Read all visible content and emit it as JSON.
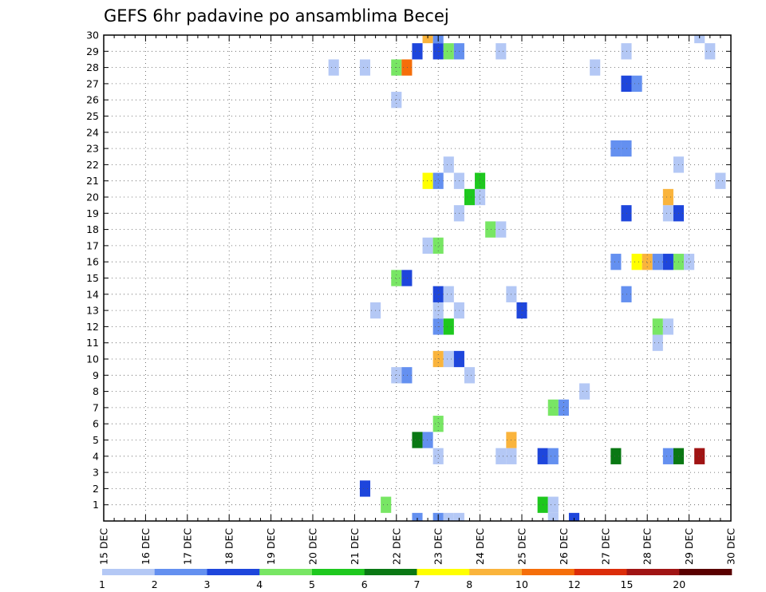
{
  "chart_data": {
    "type": "heatmap",
    "title": "GEFS 6hr padavine po ansamblima Becej",
    "x_tick_labels": [
      "15 DEC",
      "16 DEC",
      "17 DEC",
      "18 DEC",
      "19 DEC",
      "20 DEC",
      "21 DEC",
      "22 DEC",
      "23 DEC",
      "24 DEC",
      "25 DEC",
      "26 DEC",
      "27 DEC",
      "28 DEC",
      "29 DEC",
      "30 DEC"
    ],
    "y_tick_labels": [
      "1",
      "2",
      "3",
      "4",
      "5",
      "6",
      "7",
      "8",
      "9",
      "10",
      "11",
      "12",
      "13",
      "14",
      "15",
      "16",
      "17",
      "18",
      "19",
      "20",
      "21",
      "22",
      "23",
      "24",
      "25",
      "26",
      "27",
      "28",
      "29",
      "30"
    ],
    "x_range_days": [
      15,
      30
    ],
    "y_range": [
      0,
      30
    ],
    "grid": true,
    "colorbar": {
      "boundaries": [
        "1",
        "2",
        "3",
        "4",
        "5",
        "6",
        "7",
        "8",
        "10",
        "12",
        "15",
        "20"
      ],
      "colors": [
        "#b4c8f5",
        "#6490f0",
        "#1e46dc",
        "#78e664",
        "#1ec81e",
        "#0a7814",
        "#ffff00",
        "#fab43c",
        "#f56e0a",
        "#dc2d0a",
        "#a01414",
        "#5a0000"
      ]
    },
    "cells": [
      {
        "x": 23.0,
        "y": 0.0,
        "v": 2.0
      },
      {
        "x": 22.5,
        "y": 0.0,
        "v": 2.5
      },
      {
        "x": 23.25,
        "y": 0.0,
        "v": 1.0
      },
      {
        "x": 23.5,
        "y": 0.0,
        "v": 1.0
      },
      {
        "x": 25.75,
        "y": 0.0,
        "v": 1.0
      },
      {
        "x": 26.25,
        "y": 0.0,
        "v": 3.0
      },
      {
        "x": 21.75,
        "y": 1.0,
        "v": 4.5
      },
      {
        "x": 25.5,
        "y": 1.0,
        "v": 5.5
      },
      {
        "x": 25.75,
        "y": 1.0,
        "v": 1.0
      },
      {
        "x": 21.25,
        "y": 2.0,
        "v": 3.0
      },
      {
        "x": 23.0,
        "y": 4.0,
        "v": 1.0
      },
      {
        "x": 24.5,
        "y": 4.0,
        "v": 1.0
      },
      {
        "x": 24.75,
        "y": 4.0,
        "v": 1.0
      },
      {
        "x": 25.5,
        "y": 4.0,
        "v": 3.0
      },
      {
        "x": 25.75,
        "y": 4.0,
        "v": 2.0
      },
      {
        "x": 27.25,
        "y": 4.0,
        "v": 6.5
      },
      {
        "x": 28.5,
        "y": 4.0,
        "v": 2.0
      },
      {
        "x": 28.75,
        "y": 4.0,
        "v": 6.5
      },
      {
        "x": 29.25,
        "y": 4.0,
        "v": 16.0
      },
      {
        "x": 22.5,
        "y": 5.0,
        "v": 6.5
      },
      {
        "x": 22.75,
        "y": 5.0,
        "v": 2.0
      },
      {
        "x": 24.75,
        "y": 5.0,
        "v": 8.5
      },
      {
        "x": 23.0,
        "y": 6.0,
        "v": 4.5
      },
      {
        "x": 25.75,
        "y": 7.0,
        "v": 4.5
      },
      {
        "x": 26.0,
        "y": 7.0,
        "v": 2.0
      },
      {
        "x": 26.5,
        "y": 8.0,
        "v": 1.0
      },
      {
        "x": 22.0,
        "y": 9.0,
        "v": 1.0
      },
      {
        "x": 22.25,
        "y": 9.0,
        "v": 2.0
      },
      {
        "x": 23.75,
        "y": 9.0,
        "v": 1.0
      },
      {
        "x": 23.0,
        "y": 10.0,
        "v": 8.5
      },
      {
        "x": 23.25,
        "y": 10.0,
        "v": 1.0
      },
      {
        "x": 23.5,
        "y": 10.0,
        "v": 3.0
      },
      {
        "x": 28.25,
        "y": 11.0,
        "v": 1.0
      },
      {
        "x": 23.0,
        "y": 12.0,
        "v": 2.0
      },
      {
        "x": 23.25,
        "y": 12.0,
        "v": 5.5
      },
      {
        "x": 28.25,
        "y": 12.0,
        "v": 4.5
      },
      {
        "x": 28.5,
        "y": 12.0,
        "v": 1.0
      },
      {
        "x": 21.5,
        "y": 13.0,
        "v": 1.0
      },
      {
        "x": 23.0,
        "y": 13.0,
        "v": 1.0
      },
      {
        "x": 23.5,
        "y": 13.0,
        "v": 1.0
      },
      {
        "x": 25.0,
        "y": 13.0,
        "v": 3.0
      },
      {
        "x": 23.0,
        "y": 14.0,
        "v": 3.0
      },
      {
        "x": 23.25,
        "y": 14.0,
        "v": 1.0
      },
      {
        "x": 24.75,
        "y": 14.0,
        "v": 1.0
      },
      {
        "x": 27.5,
        "y": 14.0,
        "v": 2.0
      },
      {
        "x": 22.0,
        "y": 15.0,
        "v": 4.5
      },
      {
        "x": 22.25,
        "y": 15.0,
        "v": 3.0
      },
      {
        "x": 27.25,
        "y": 16.0,
        "v": 2.0
      },
      {
        "x": 27.75,
        "y": 16.0,
        "v": 7.5
      },
      {
        "x": 28.0,
        "y": 16.0,
        "v": 8.5
      },
      {
        "x": 28.25,
        "y": 16.0,
        "v": 2.0
      },
      {
        "x": 28.5,
        "y": 16.0,
        "v": 3.0
      },
      {
        "x": 28.75,
        "y": 16.0,
        "v": 4.5
      },
      {
        "x": 29.0,
        "y": 16.0,
        "v": 1.0
      },
      {
        "x": 22.75,
        "y": 17.0,
        "v": 1.0
      },
      {
        "x": 23.0,
        "y": 17.0,
        "v": 4.5
      },
      {
        "x": 24.25,
        "y": 18.0,
        "v": 4.5
      },
      {
        "x": 24.5,
        "y": 18.0,
        "v": 1.0
      },
      {
        "x": 23.5,
        "y": 19.0,
        "v": 1.0
      },
      {
        "x": 27.5,
        "y": 19.0,
        "v": 3.0
      },
      {
        "x": 28.5,
        "y": 19.0,
        "v": 1.0
      },
      {
        "x": 28.75,
        "y": 19.0,
        "v": 3.0
      },
      {
        "x": 23.75,
        "y": 20.0,
        "v": 5.5
      },
      {
        "x": 24.0,
        "y": 20.0,
        "v": 1.0
      },
      {
        "x": 28.5,
        "y": 20.0,
        "v": 8.5
      },
      {
        "x": 22.75,
        "y": 21.0,
        "v": 7.5
      },
      {
        "x": 23.0,
        "y": 21.0,
        "v": 2.0
      },
      {
        "x": 23.5,
        "y": 21.0,
        "v": 1.0
      },
      {
        "x": 24.0,
        "y": 21.0,
        "v": 5.5
      },
      {
        "x": 29.75,
        "y": 21.0,
        "v": 1.0
      },
      {
        "x": 23.25,
        "y": 22.0,
        "v": 1.0
      },
      {
        "x": 28.75,
        "y": 22.0,
        "v": 1.0
      },
      {
        "x": 27.25,
        "y": 23.0,
        "v": 2.0
      },
      {
        "x": 27.5,
        "y": 23.0,
        "v": 2.0
      },
      {
        "x": 22.0,
        "y": 26.0,
        "v": 1.0
      },
      {
        "x": 27.5,
        "y": 27.0,
        "v": 3.0
      },
      {
        "x": 27.75,
        "y": 27.0,
        "v": 2.0
      },
      {
        "x": 20.5,
        "y": 28.0,
        "v": 1.0
      },
      {
        "x": 21.25,
        "y": 28.0,
        "v": 1.0
      },
      {
        "x": 22.0,
        "y": 28.0,
        "v": 4.5
      },
      {
        "x": 22.25,
        "y": 28.0,
        "v": 10.5
      },
      {
        "x": 26.75,
        "y": 28.0,
        "v": 1.0
      },
      {
        "x": 22.5,
        "y": 29.0,
        "v": 3.0
      },
      {
        "x": 23.0,
        "y": 29.0,
        "v": 3.0
      },
      {
        "x": 23.25,
        "y": 29.0,
        "v": 4.5
      },
      {
        "x": 23.5,
        "y": 29.0,
        "v": 2.0
      },
      {
        "x": 24.5,
        "y": 29.0,
        "v": 1.0
      },
      {
        "x": 27.5,
        "y": 29.0,
        "v": 1.0
      },
      {
        "x": 29.5,
        "y": 29.0,
        "v": 1.0
      },
      {
        "x": 22.75,
        "y": 30.0,
        "v": 8.5
      },
      {
        "x": 23.0,
        "y": 30.0,
        "v": 2.0
      },
      {
        "x": 29.25,
        "y": 30.0,
        "v": 1.0
      }
    ]
  }
}
